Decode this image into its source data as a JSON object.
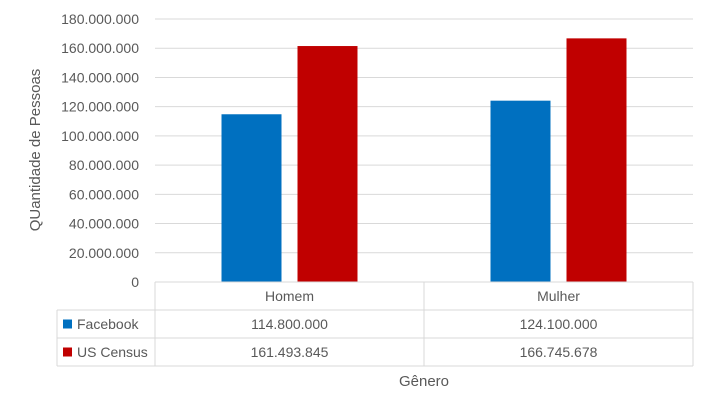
{
  "chart_data": {
    "type": "bar",
    "title": "",
    "xlabel": "Gênero",
    "ylabel": "QUantidade de Pessoas",
    "categories": [
      "Homem",
      "Mulher"
    ],
    "series": [
      {
        "name": "Facebook",
        "values": [
          114800000,
          124100000
        ],
        "labels": [
          "114.800.000",
          "124.100.000"
        ],
        "color": "#0070c0"
      },
      {
        "name": "US Census",
        "values": [
          161493845,
          166745678
        ],
        "labels": [
          "161.493.845",
          "166.745.678"
        ],
        "color": "#c00000"
      }
    ],
    "ylim": [
      0,
      180000000
    ],
    "yticks": [
      0,
      20000000,
      40000000,
      60000000,
      80000000,
      100000000,
      120000000,
      140000000,
      160000000,
      180000000
    ],
    "ytick_labels": [
      "0",
      "20.000.000",
      "40.000.000",
      "60.000.000",
      "80.000.000",
      "100.000.000",
      "120.000.000",
      "140.000.000",
      "160.000.000",
      "180.000.000"
    ],
    "grid": true,
    "legend": "data-table",
    "data_table": true
  }
}
